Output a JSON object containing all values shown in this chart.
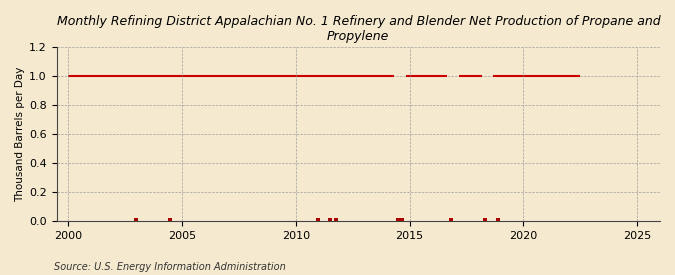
{
  "title": "Monthly Refining District Appalachian No. 1 Refinery and Blender Net Production of Propane and\nPropylene",
  "ylabel": "Thousand Barrels per Day",
  "source": "Source: U.S. Energy Information Administration",
  "background_color": "#f5ead0",
  "line_color": "#cc0000",
  "dot_color": "#aa0000",
  "xlim": [
    1999.5,
    2026
  ],
  "ylim": [
    0.0,
    1.2
  ],
  "yticks": [
    0.0,
    0.2,
    0.4,
    0.6,
    0.8,
    1.0,
    1.2
  ],
  "xticks": [
    2000,
    2005,
    2010,
    2015,
    2020,
    2025
  ],
  "gap_years": [
    2014.5,
    2014.7,
    2016.8,
    2017.0,
    2018.3,
    2018.5
  ],
  "dot_years_zero": [
    2003.0,
    2004.6,
    2011.0,
    2011.5,
    2011.75,
    2014.5,
    2014.75,
    2016.8,
    2018.3,
    2019.0
  ]
}
